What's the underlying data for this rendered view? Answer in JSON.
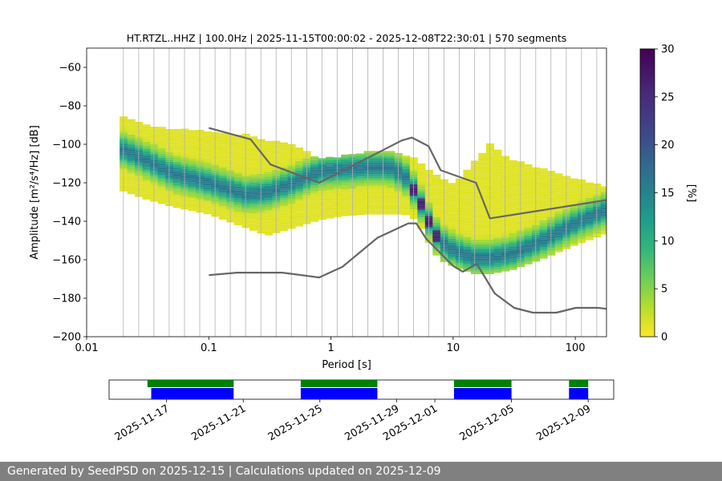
{
  "chart_data": {
    "type": "heatmap",
    "title": "HT.RTZL..HHZ | 100.0Hz | 2025-11-15T00:00:02 - 2025-12-08T22:30:01 | 570 segments",
    "xlabel": "Period [s]",
    "ylabel": "Amplitude [m²/s⁴/Hz] [dB]",
    "x_scale": "log",
    "xlim": [
      0.01,
      180
    ],
    "ylim": [
      -200,
      -50
    ],
    "x_ticks": [
      {
        "value": 0.01,
        "label": "0.01"
      },
      {
        "value": 0.1,
        "label": "0.1"
      },
      {
        "value": 1,
        "label": "1"
      },
      {
        "value": 10,
        "label": "10"
      },
      {
        "value": 100,
        "label": "100"
      }
    ],
    "y_ticks": [
      -60,
      -80,
      -100,
      -120,
      -140,
      -160,
      -180,
      -200
    ],
    "grid": "vertical lines at period bins",
    "colorbar": {
      "label": "[%]",
      "min": 0,
      "max": 30,
      "ticks": [
        0,
        5,
        10,
        15,
        20,
        25,
        30
      ],
      "colormap": "viridis_r"
    },
    "mode_line": {
      "period": [
        0.02,
        0.03,
        0.05,
        0.1,
        0.2,
        0.3,
        0.5,
        0.8,
        1.2,
        2,
        3,
        4,
        5,
        6,
        7,
        8,
        10,
        12,
        15,
        20,
        30,
        50,
        100,
        180
      ],
      "db": [
        -103,
        -108,
        -115,
        -120,
        -126,
        -125,
        -120,
        -114,
        -113,
        -112,
        -112,
        -116,
        -126,
        -137,
        -146,
        -151,
        -155,
        -157,
        -159,
        -159,
        -157,
        -151,
        -141,
        -134
      ]
    },
    "band_upper_db": [
      -86,
      -90,
      -92,
      -93,
      -95,
      -98,
      -100,
      -108,
      -106,
      -104,
      -103,
      -105,
      -108,
      -112,
      -115,
      -118,
      -120,
      -116,
      -108,
      -100,
      -108,
      -112,
      -118,
      -122
    ],
    "band_lower_db": [
      -124,
      -128,
      -132,
      -136,
      -143,
      -147,
      -143,
      -139,
      -137,
      -136,
      -136,
      -136,
      -139,
      -148,
      -156,
      -160,
      -163,
      -165,
      -167,
      -167,
      -165,
      -160,
      -152,
      -146
    ],
    "noise_models": [
      {
        "name": "high",
        "period": [
          0.1,
          0.22,
          0.32,
          0.8,
          3.8,
          4.6,
          6.3,
          7.9,
          15.4,
          20,
          180
        ],
        "db": [
          -91.5,
          -97.4,
          -110.5,
          -120,
          -98,
          -96.5,
          -101,
          -113.5,
          -120,
          -138.5,
          -129
        ]
      },
      {
        "name": "low",
        "period": [
          0.1,
          0.17,
          0.4,
          0.8,
          1.24,
          2.4,
          4.3,
          5,
          6,
          10,
          12,
          15.6,
          21.9,
          31.6,
          45,
          70,
          101,
          154,
          180
        ],
        "db": [
          -168,
          -166.7,
          -166.7,
          -169.2,
          -163.7,
          -148.6,
          -141.1,
          -141.1,
          -149,
          -163.2,
          -166.2,
          -162.1,
          -177.5,
          -185,
          -187.5,
          -187.5,
          -185,
          -185,
          -185.5
        ]
      }
    ],
    "timeline": {
      "date_ticks": [
        "2025-11-17",
        "2025-11-21",
        "2025-11-25",
        "2025-11-29",
        "2025-12-01",
        "2025-12-05",
        "2025-12-09"
      ],
      "data_segments": [
        [
          "2025-11-16",
          "2025-11-20.5"
        ],
        [
          "2025-11-24",
          "2025-11-28"
        ],
        [
          "2025-12-02",
          "2025-12-05"
        ],
        [
          "2025-12-08",
          "2025-12-09"
        ]
      ],
      "psd_segments": [
        [
          "2025-11-16.2",
          "2025-11-20.5"
        ],
        [
          "2025-11-24",
          "2025-11-28"
        ],
        [
          "2025-12-02",
          "2025-12-05"
        ],
        [
          "2025-12-08",
          "2025-12-09"
        ]
      ],
      "data_color": "#008000",
      "psd_color": "#0000ff"
    }
  },
  "footer": {
    "text": "Generated by SeedPSD on 2025-12-15 | Calculations updated on 2025-12-09"
  },
  "colors": {
    "noise_model": "#666666",
    "grid": "#b0b0b0"
  }
}
